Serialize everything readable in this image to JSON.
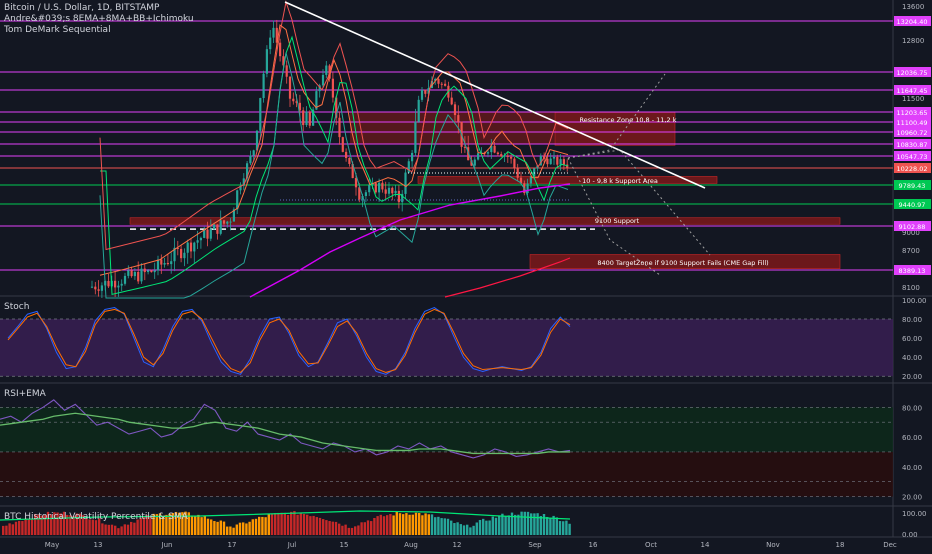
{
  "header": {
    "line1": "Bitcoin / U.S. Dollar, 1D, BITSTAMP",
    "line2": "Andre&#039;s 8EMA+8MA+BB+Ichimoku",
    "line3": "Tom DeMark Sequential"
  },
  "panes": {
    "stoch_title": "Stoch",
    "rsi_title": "RSI+EMA",
    "hv_title": "BTC Historical Volatility Percentile & SMA"
  },
  "colors": {
    "background": "#131722",
    "up": "#26a69a",
    "down": "#ef5350",
    "level_line": "#e040fb",
    "support_green": "#00c853",
    "zone": "#8b1a1a",
    "stoch_fill": "#3b1f56"
  },
  "chart_data": [
    {
      "type": "candlestick",
      "title": "Bitcoin / U.S. Dollar, 1D, BITSTAMP",
      "x_ticks": [
        "May",
        "13",
        "Jun",
        "17",
        "Jul",
        "15",
        "Aug",
        "12",
        "Sep",
        "16",
        "Oct",
        "14",
        "Nov",
        "18",
        "Dec"
      ],
      "y_ticks": [
        13600,
        12800,
        12000,
        11500,
        9000,
        8700,
        8100
      ],
      "ylim": [
        7900,
        13700
      ],
      "price_levels": [
        {
          "label": "13204.40",
          "value": 13204.4,
          "color": "#e040fb"
        },
        {
          "label": "12036.75",
          "value": 12036.75,
          "color": "#e040fb"
        },
        {
          "label": "11647.45",
          "value": 11647.45,
          "color": "#e040fb"
        },
        {
          "label": "11203.65",
          "value": 11203.65,
          "color": "#e040fb"
        },
        {
          "label": "11100.49",
          "value": 11100.49,
          "color": "#e040fb"
        },
        {
          "label": "10960.72",
          "value": 10960.72,
          "color": "#e040fb"
        },
        {
          "label": "10830.87",
          "value": 10830.87,
          "color": "#e040fb"
        },
        {
          "label": "10547.73",
          "value": 10547.73,
          "color": "#e040fb"
        },
        {
          "label": "10228.02",
          "value": 10228.02,
          "color": "#ef5350"
        },
        {
          "label": "9789.43",
          "value": 9789.43,
          "color": "#00c853"
        },
        {
          "label": "9440.97",
          "value": 9440.97,
          "color": "#00c853"
        },
        {
          "label": "9102.88",
          "value": 9102.88,
          "color": "#e040fb"
        },
        {
          "label": "8389.13",
          "value": 8389.13,
          "color": "#e040fb"
        }
      ],
      "zones": [
        {
          "label": "Resistance Zone 10,8 - 11,2 k",
          "low": 10800,
          "high": 11200
        },
        {
          "label": "10 - 9,8 k Support Area",
          "low": 9830,
          "high": 10010
        },
        {
          "label": "9100 Support",
          "low": 9130,
          "high": 9230
        },
        {
          "label": "8400 TargetZone if 9100 Support Fails (CME Gap Fill)",
          "low": 8410,
          "high": 8630
        }
      ]
    },
    {
      "type": "line",
      "title": "Stoch",
      "y_ticks": [
        100,
        80,
        60,
        40,
        20
      ],
      "ylim": [
        15,
        102
      ],
      "series": [
        {
          "values": [
            60,
            72,
            85,
            88,
            70,
            45,
            28,
            30,
            50,
            78,
            90,
            92,
            85,
            60,
            35,
            30,
            48,
            72,
            88,
            90,
            78,
            55,
            35,
            25,
            22,
            38,
            62,
            80,
            82,
            65,
            42,
            30,
            35,
            55,
            76,
            80,
            62,
            40,
            25,
            22,
            28,
            45,
            70,
            88,
            92,
            85,
            62,
            40,
            28,
            25,
            28,
            30,
            28,
            26,
            30,
            45,
            70,
            82,
            72
          ]
        },
        {
          "values": [
            58,
            70,
            82,
            86,
            72,
            50,
            32,
            30,
            46,
            74,
            88,
            90,
            86,
            64,
            40,
            32,
            44,
            68,
            85,
            88,
            80,
            60,
            40,
            28,
            24,
            34,
            58,
            76,
            80,
            68,
            46,
            33,
            34,
            52,
            72,
            78,
            65,
            44,
            28,
            24,
            27,
            42,
            66,
            85,
            90,
            86,
            66,
            44,
            31,
            27,
            28,
            29,
            28,
            27,
            29,
            42,
            66,
            80,
            74
          ]
        }
      ]
    },
    {
      "type": "line",
      "title": "RSI+EMA",
      "y_ticks": [
        80,
        60,
        40,
        20
      ],
      "ylim": [
        15,
        95
      ],
      "series": [
        {
          "values": [
            72,
            74,
            70,
            76,
            80,
            85,
            78,
            82,
            75,
            68,
            70,
            66,
            62,
            64,
            66,
            60,
            62,
            68,
            72,
            82,
            78,
            66,
            64,
            70,
            62,
            60,
            58,
            62,
            56,
            54,
            52,
            56,
            54,
            50,
            52,
            48,
            50,
            54,
            52,
            56,
            52,
            54,
            50,
            48,
            46,
            48,
            52,
            50,
            47,
            48,
            50,
            52,
            50,
            51
          ]
        },
        {
          "values": [
            68,
            69,
            70,
            71,
            72,
            74,
            75,
            76,
            75,
            74,
            73,
            72,
            70,
            69,
            68,
            67,
            66,
            66,
            67,
            69,
            70,
            69,
            68,
            67,
            66,
            64,
            62,
            61,
            60,
            58,
            56,
            55,
            54,
            53,
            52,
            51,
            51,
            51,
            51,
            52,
            52,
            52,
            51,
            50,
            49,
            49,
            49,
            49,
            49,
            49,
            49,
            50,
            50,
            50
          ]
        }
      ]
    },
    {
      "type": "bar",
      "title": "BTC Historical Volatility Percentile & SMA",
      "y_ticks": [
        100,
        0
      ],
      "ylim": [
        0,
        100
      ]
    }
  ]
}
